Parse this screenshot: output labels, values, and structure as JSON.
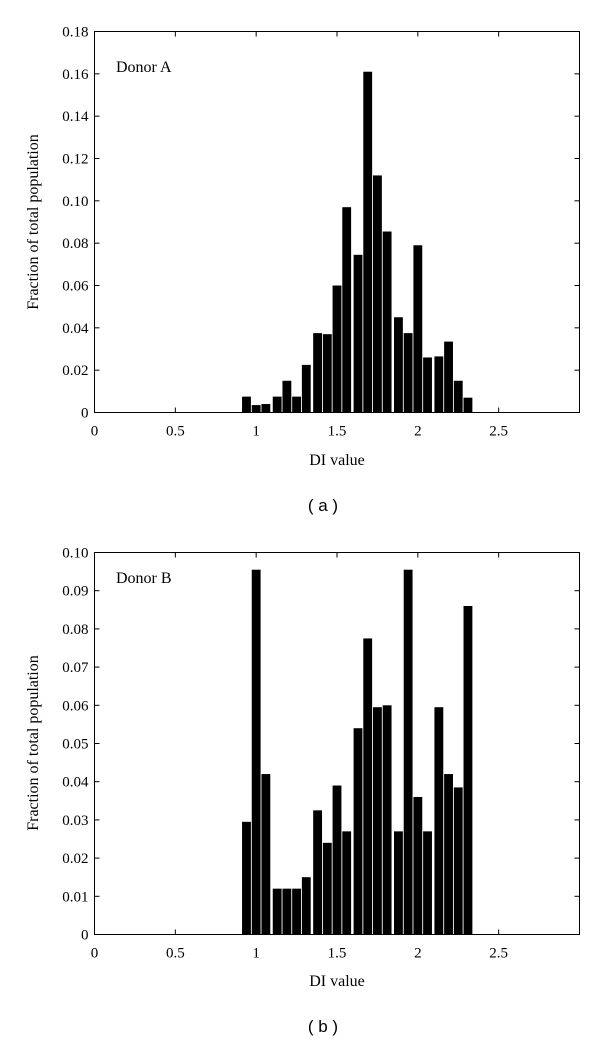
{
  "chart_data": [
    {
      "type": "bar",
      "title": "",
      "annotation": "Donor A",
      "caption": "( a )",
      "xlabel": "DI value",
      "ylabel": "Fraction of total population",
      "xlim": [
        0,
        3
      ],
      "ylim": [
        0,
        0.18
      ],
      "xticks": [
        "0",
        "0.5",
        "1",
        "1.5",
        "2",
        "2.5"
      ],
      "xtick_values": [
        0,
        0.5,
        1,
        1.5,
        2,
        2.5
      ],
      "yticks": [
        "0",
        "0.02",
        "0.04",
        "0.06",
        "0.08",
        "0.10",
        "0.12",
        "0.14",
        "0.16",
        "0.18"
      ],
      "ytick_values": [
        0,
        0.02,
        0.04,
        0.06,
        0.08,
        0.1,
        0.12,
        0.14,
        0.16,
        0.18
      ],
      "bin_width": 0.0667,
      "x": [
        0.94,
        1.0,
        1.06,
        1.13,
        1.19,
        1.25,
        1.31,
        1.38,
        1.44,
        1.5,
        1.56,
        1.63,
        1.69,
        1.75,
        1.81,
        1.88,
        1.94,
        2.0,
        2.06,
        2.13,
        2.19,
        2.25,
        2.31
      ],
      "values": [
        0.0075,
        0.0035,
        0.004,
        0.0075,
        0.015,
        0.0075,
        0.0225,
        0.0375,
        0.037,
        0.06,
        0.097,
        0.0745,
        0.161,
        0.112,
        0.0855,
        0.045,
        0.0375,
        0.079,
        0.026,
        0.0265,
        0.0335,
        0.015,
        0.007
      ]
    },
    {
      "type": "bar",
      "title": "",
      "annotation": "Donor B",
      "caption": "( b )",
      "xlabel": "DI value",
      "ylabel": "Fraction of total population",
      "xlim": [
        0,
        3
      ],
      "ylim": [
        0,
        0.1
      ],
      "xticks": [
        "0",
        "0.5",
        "1",
        "1.5",
        "2",
        "2.5"
      ],
      "xtick_values": [
        0,
        0.5,
        1,
        1.5,
        2,
        2.5
      ],
      "yticks": [
        "0",
        "0.01",
        "0.02",
        "0.03",
        "0.04",
        "0.05",
        "0.06",
        "0.07",
        "0.08",
        "0.09",
        "0.10"
      ],
      "ytick_values": [
        0,
        0.01,
        0.02,
        0.03,
        0.04,
        0.05,
        0.06,
        0.07,
        0.08,
        0.09,
        0.1
      ],
      "bin_width": 0.0667,
      "x": [
        0.94,
        1.0,
        1.06,
        1.13,
        1.19,
        1.25,
        1.31,
        1.38,
        1.44,
        1.5,
        1.56,
        1.63,
        1.69,
        1.75,
        1.81,
        1.88,
        1.94,
        2.0,
        2.06,
        2.13,
        2.19,
        2.25,
        2.31
      ],
      "values": [
        0.0295,
        0.0955,
        0.042,
        0.012,
        0.012,
        0.012,
        0.015,
        0.0325,
        0.024,
        0.039,
        0.027,
        0.054,
        0.0775,
        0.0595,
        0.06,
        0.027,
        0.0955,
        0.036,
        0.027,
        0.0595,
        0.042,
        0.0385,
        0.086
      ]
    }
  ]
}
